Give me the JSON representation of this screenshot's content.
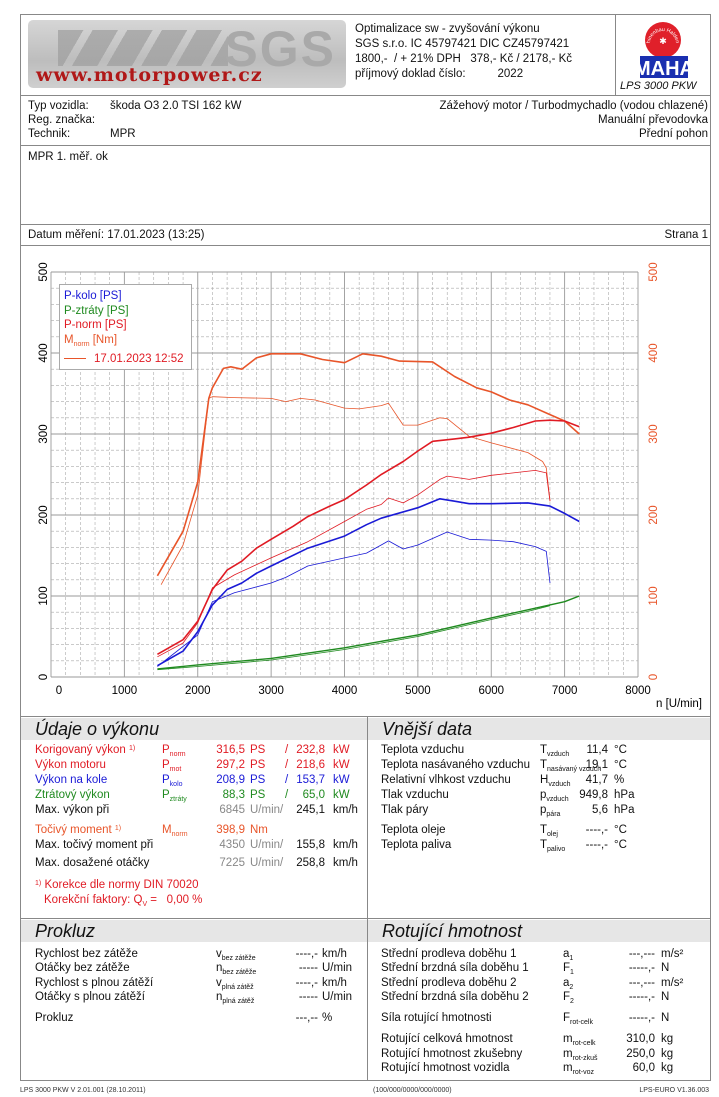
{
  "header": {
    "logo_text": "www.motorpower.cz",
    "logo_brand": "SGS",
    "lines": [
      "Optimalizace sw - zvyšování výkonu",
      "SGS s.r.o. IC 45797421 DIC CZ45797421",
      "1800,-  / + 21% DPH   378,- Kč / 2178,- Kč",
      "příjmový doklad číslo:          2022"
    ],
    "maha_brand": "MAHA",
    "maha_ring": "Maschinenbau Haldenwang",
    "device": "LPS 3000 PKW"
  },
  "vehicle": {
    "type_label": "Typ vozidla:",
    "type_value": "škoda O3 2.0 TSI 162 kW",
    "reg_label": "Reg. značka:",
    "reg_value": "",
    "tech_label": "Technik:",
    "tech_value": "MPR",
    "engine": "Zážehový motor / Turbodmychadlo (vodou chlazené)",
    "gearbox": "Manuální převodovka",
    "drive": "Přední pohon"
  },
  "notes": "MPR 1. měř. ok",
  "date_line": "Datum měření: 17.01.2023 (13:25)",
  "page": "Strana 1",
  "chart_data": {
    "type": "line",
    "xlabel": "n [U/min]",
    "xlim": [
      0,
      8000
    ],
    "ylim_left": [
      0,
      500
    ],
    "ylim_right": [
      0,
      500
    ],
    "x_ticks": [
      "0",
      "1000",
      "2000",
      "3000",
      "4000",
      "5000",
      "6000",
      "7000",
      "8000"
    ],
    "y_ticks": [
      "0",
      "100",
      "200",
      "300",
      "400",
      "500"
    ],
    "grid": true,
    "legend_position": "top-left",
    "legend": [
      {
        "label": "P-kolo [PS]",
        "color": "#1a1ad6"
      },
      {
        "label": "P-ztráty [PS]",
        "color": "#1f8a1f"
      },
      {
        "label": "P-norm [PS]",
        "color": "#e01b24"
      },
      {
        "label": "M",
        "sub": "norm",
        "suffix": " [Nm]",
        "color": "#e8552a"
      }
    ],
    "reference_label": "17.01.2023 12:52",
    "series": [
      {
        "name": "M-norm",
        "color": "#e8552a",
        "width": 1.6,
        "points": [
          [
            1450,
            125
          ],
          [
            1800,
            180
          ],
          [
            2000,
            241
          ],
          [
            2150,
            344
          ],
          [
            2200,
            357
          ],
          [
            2350,
            381
          ],
          [
            2450,
            383
          ],
          [
            2600,
            380
          ],
          [
            2800,
            394
          ],
          [
            3000,
            399
          ],
          [
            3400,
            399
          ],
          [
            3700,
            392
          ],
          [
            4000,
            388
          ],
          [
            4250,
            399
          ],
          [
            4500,
            396
          ],
          [
            4750,
            390
          ],
          [
            5200,
            389
          ],
          [
            5500,
            371
          ],
          [
            5800,
            357
          ],
          [
            6000,
            352
          ],
          [
            6250,
            342
          ],
          [
            6500,
            336
          ],
          [
            6800,
            324
          ],
          [
            7000,
            316
          ],
          [
            7200,
            300
          ]
        ]
      },
      {
        "name": "M-norm reference",
        "color": "#e8552a",
        "width": 0.8,
        "points": [
          [
            1500,
            114
          ],
          [
            1800,
            163
          ],
          [
            2000,
            225
          ],
          [
            2150,
            344
          ],
          [
            2200,
            346
          ],
          [
            2500,
            345
          ],
          [
            3000,
            344
          ],
          [
            3200,
            340
          ],
          [
            3400,
            344
          ],
          [
            3600,
            342
          ],
          [
            4000,
            332
          ],
          [
            4200,
            331
          ],
          [
            4500,
            335
          ],
          [
            4600,
            338
          ],
          [
            4800,
            311
          ],
          [
            5000,
            311
          ],
          [
            5300,
            320
          ],
          [
            5400,
            319
          ],
          [
            5700,
            297
          ],
          [
            6000,
            289
          ],
          [
            6500,
            277
          ],
          [
            6700,
            266
          ],
          [
            6750,
            258
          ],
          [
            6800,
            217
          ]
        ]
      },
      {
        "name": "P-norm",
        "color": "#e01b24",
        "width": 1.6,
        "points": [
          [
            1450,
            28
          ],
          [
            1800,
            46
          ],
          [
            2000,
            69
          ],
          [
            2200,
            108
          ],
          [
            2400,
            132
          ],
          [
            2600,
            143
          ],
          [
            2800,
            159
          ],
          [
            3000,
            170
          ],
          [
            3300,
            186
          ],
          [
            3500,
            198
          ],
          [
            3800,
            211
          ],
          [
            4000,
            219
          ],
          [
            4300,
            237
          ],
          [
            4500,
            250
          ],
          [
            4800,
            266
          ],
          [
            5000,
            279
          ],
          [
            5200,
            291
          ],
          [
            5500,
            294
          ],
          [
            5700,
            296
          ],
          [
            6000,
            301
          ],
          [
            6300,
            308
          ],
          [
            6600,
            316
          ],
          [
            6800,
            317
          ],
          [
            7000,
            316
          ],
          [
            7200,
            309
          ]
        ]
      },
      {
        "name": "P-norm reference",
        "color": "#e01b24",
        "width": 0.8,
        "points": [
          [
            1450,
            25
          ],
          [
            1800,
            42
          ],
          [
            2000,
            67
          ],
          [
            2200,
            110
          ],
          [
            2500,
            126
          ],
          [
            3000,
            147
          ],
          [
            3500,
            167
          ],
          [
            4000,
            192
          ],
          [
            4300,
            207
          ],
          [
            4500,
            213
          ],
          [
            4600,
            221
          ],
          [
            4800,
            215
          ],
          [
            5000,
            225
          ],
          [
            5300,
            244
          ],
          [
            5400,
            248
          ],
          [
            5700,
            244
          ],
          [
            6000,
            249
          ],
          [
            6300,
            252
          ],
          [
            6600,
            255
          ],
          [
            6750,
            252
          ],
          [
            6800,
            217
          ]
        ]
      },
      {
        "name": "P-kolo",
        "color": "#1a1ad6",
        "width": 1.6,
        "points": [
          [
            1450,
            14
          ],
          [
            1800,
            32
          ],
          [
            2000,
            56
          ],
          [
            2200,
            89
          ],
          [
            2400,
            108
          ],
          [
            2600,
            116
          ],
          [
            2800,
            128
          ],
          [
            3000,
            137
          ],
          [
            3500,
            159
          ],
          [
            4000,
            174
          ],
          [
            4300,
            188
          ],
          [
            4500,
            196
          ],
          [
            5000,
            209
          ],
          [
            5300,
            220
          ],
          [
            5500,
            217
          ],
          [
            5700,
            214
          ],
          [
            6000,
            214
          ],
          [
            6500,
            215
          ],
          [
            6800,
            211
          ],
          [
            7000,
            202
          ],
          [
            7200,
            192
          ]
        ]
      },
      {
        "name": "P-kolo reference",
        "color": "#1a1ad6",
        "width": 0.8,
        "points": [
          [
            1450,
            13
          ],
          [
            2000,
            52
          ],
          [
            2200,
            93
          ],
          [
            2500,
            104
          ],
          [
            3000,
            116
          ],
          [
            3200,
            123
          ],
          [
            3500,
            137
          ],
          [
            4000,
            147
          ],
          [
            4300,
            153
          ],
          [
            4500,
            163
          ],
          [
            4600,
            168
          ],
          [
            4800,
            158
          ],
          [
            5000,
            163
          ],
          [
            5400,
            179
          ],
          [
            5700,
            170
          ],
          [
            6000,
            169
          ],
          [
            6300,
            167
          ],
          [
            6600,
            161
          ],
          [
            6750,
            155
          ],
          [
            6800,
            116
          ]
        ]
      },
      {
        "name": "P-ztraty",
        "color": "#1f8a1f",
        "width": 1.4,
        "points": [
          [
            1450,
            10
          ],
          [
            2000,
            15
          ],
          [
            3000,
            23
          ],
          [
            4000,
            36
          ],
          [
            5000,
            52
          ],
          [
            6000,
            73
          ],
          [
            6500,
            83
          ],
          [
            7000,
            93
          ],
          [
            7200,
            100
          ]
        ]
      },
      {
        "name": "P-ztraty reference",
        "color": "#1f8a1f",
        "width": 0.8,
        "points": [
          [
            1450,
            9
          ],
          [
            2000,
            13
          ],
          [
            3000,
            21
          ],
          [
            4000,
            34
          ],
          [
            5000,
            50
          ],
          [
            6000,
            71
          ],
          [
            6500,
            81
          ],
          [
            6800,
            88
          ]
        ]
      }
    ]
  },
  "performance": {
    "title": "Údaje o výkonu",
    "rows": [
      {
        "label": "Korigovaný výkon",
        "mark": "1)",
        "sym": "P",
        "sub": "norm",
        "v1": "316,5",
        "u1": "PS",
        "sep": "/",
        "v2": "232,8",
        "u2": "kW",
        "cls": "red",
        "vcls": "red"
      },
      {
        "label": "Výkon motoru",
        "sym": "P",
        "sub": "mot",
        "v1": "297,2",
        "u1": "PS",
        "sep": "/",
        "v2": "218,6",
        "u2": "kW",
        "cls": "red",
        "vcls": "red"
      },
      {
        "label": "Výkon na kole",
        "sym": "P",
        "sub": "kolo",
        "v1": "208,9",
        "u1": "PS",
        "sep": "/",
        "v2": "153,7",
        "u2": "kW",
        "cls": "blue",
        "vcls": "blue"
      },
      {
        "label": "Ztrátový výkon",
        "sym": "P",
        "sub": "ztráty",
        "v1": "88,3",
        "u1": "PS",
        "sep": "/",
        "v2": "65,0",
        "u2": "kW",
        "cls": "green",
        "vcls": "green"
      },
      {
        "label": "Max. výkon při",
        "v1": "6845",
        "u1": "U/min/",
        "v2": "245,1",
        "u2": "km/h",
        "cls": "",
        "vcls": "grey"
      },
      {
        "label": "Točivý moment",
        "mark": "1)",
        "sym": "M",
        "sub": "norm",
        "v1": "398,9",
        "u1": "Nm",
        "cls": "orange",
        "vcls": "orange"
      },
      {
        "label": "Max. točivý moment při",
        "v1": "4350",
        "u1": "U/min/",
        "v2": "155,8",
        "u2": "km/h",
        "cls": "",
        "vcls": "grey"
      },
      {
        "label": "Max. dosažené otáčky",
        "v1": "7225",
        "u1": "U/min/",
        "v2": "258,8",
        "u2": "km/h",
        "cls": "",
        "vcls": "grey"
      }
    ],
    "note_mark": "1)",
    "note1": "Korekce dle normy DIN 70020",
    "note2": "Korekční faktory: Q",
    "note2_sub": "V",
    "note2_val": " =   0,00 %"
  },
  "external": {
    "title": "Vnější data",
    "rows": [
      {
        "label": "Teplota vzduchu",
        "sym": "T",
        "sub": "vzduch",
        "v": "11,4",
        "u": "°C"
      },
      {
        "label": "Teplota nasávaného vzduchu",
        "sym": "T",
        "sub": "nasávaný vzduch",
        "v": "19,1",
        "u": "°C"
      },
      {
        "label": "Relativní vlhkost vzduchu",
        "sym": "H",
        "sub": "vzduch",
        "v": "41,7",
        "u": "%"
      },
      {
        "label": "Tlak vzduchu",
        "sym": "p",
        "sub": "vzduch",
        "v": "949,8",
        "u": "hPa"
      },
      {
        "label": "Tlak páry",
        "sym": "p",
        "sub": "pára",
        "v": "5,6",
        "u": "hPa"
      },
      {
        "label": "Teplota oleje",
        "sym": "T",
        "sub": "olej",
        "v": "----,-",
        "u": "°C"
      },
      {
        "label": "Teplota paliva",
        "sym": "T",
        "sub": "palivo",
        "v": "----,-",
        "u": "°C"
      }
    ]
  },
  "slip": {
    "title": "Prokluz",
    "rows": [
      {
        "label": "Rychlost bez zátěže",
        "sym": "v",
        "sub": "bez zátěže",
        "v": "----,-",
        "u": "km/h"
      },
      {
        "label": "Otáčky bez zátěže",
        "sym": "n",
        "sub": "bez zátěže",
        "v": "-----",
        "u": "U/min"
      },
      {
        "label": "Rychlost s plnou zátěží",
        "sym": "v",
        "sub": "plná zátěž",
        "v": "----,-",
        "u": "km/h"
      },
      {
        "label": "Otáčky s plnou zátěží",
        "sym": "n",
        "sub": "plná zátěž",
        "v": "-----",
        "u": "U/min"
      },
      {
        "label": "Prokluz",
        "sym": "",
        "sub": "",
        "v": "---,--",
        "u": "%"
      }
    ]
  },
  "rotating": {
    "title": "Rotující hmotnost",
    "rows": [
      {
        "label": "Střední prodleva doběhu 1",
        "sym": "a",
        "sub": "1",
        "v": "---,---",
        "u": "m/s²"
      },
      {
        "label": "Střední brzdná síla doběhu 1",
        "sym": "F",
        "sub": "1",
        "v": "-----,-",
        "u": "N"
      },
      {
        "label": "Střední prodleva doběhu 2",
        "sym": "a",
        "sub": "2",
        "v": "---,---",
        "u": "m/s²"
      },
      {
        "label": "Střední brzdná síla doběhu 2",
        "sym": "F",
        "sub": "2",
        "v": "-----,-",
        "u": "N"
      },
      {
        "label": "Síla rotující hmotnosti",
        "sym": "F",
        "sub": "rot-celk",
        "v": "-----,-",
        "u": "N"
      },
      {
        "label": "Rotující celková hmotnost",
        "sym": "m",
        "sub": "rot-celk",
        "v": "310,0",
        "u": "kg"
      },
      {
        "label": "Rotující hmotnost zkušebny",
        "sym": "m",
        "sub": "rot-zkuš",
        "v": "250,0",
        "u": "kg"
      },
      {
        "label": "Rotující hmotnost vozidla",
        "sym": "m",
        "sub": "rot-voz",
        "v": "60,0",
        "u": "kg"
      }
    ]
  },
  "footer": {
    "left": "LPS 3000 PKW V 2.01.001 (28.10.2011)",
    "center": "(100/000/0000/000/0000)",
    "right": "LPS-EURO V1.36.003"
  }
}
